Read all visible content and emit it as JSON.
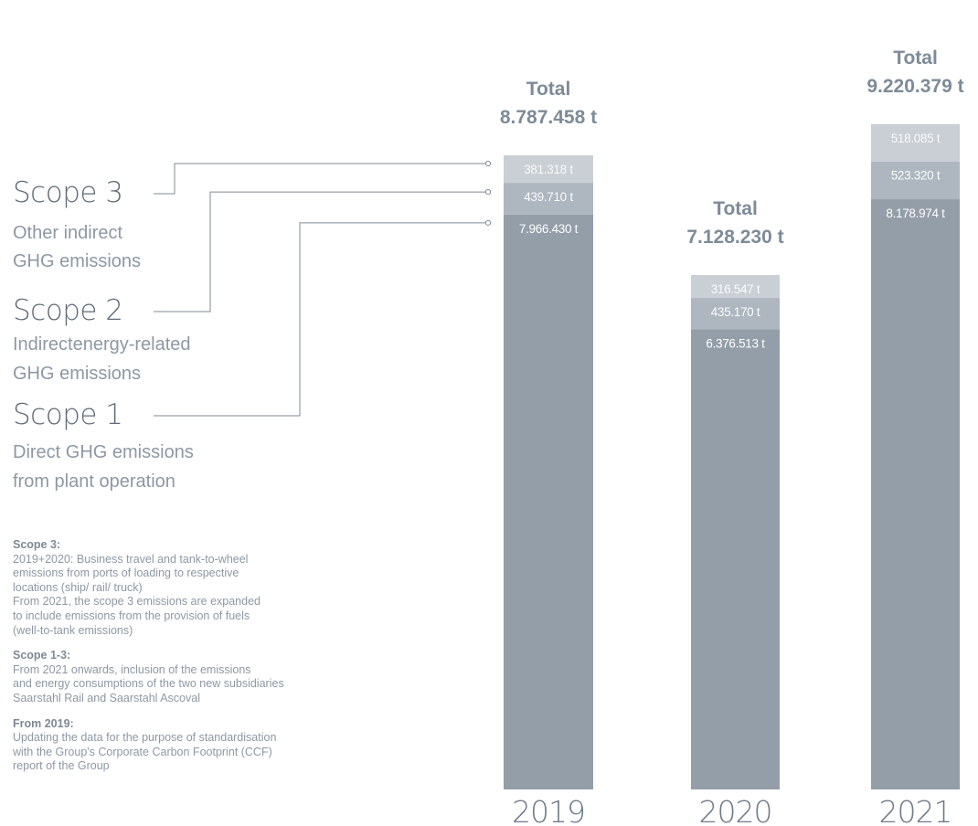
{
  "legend": {
    "scope3": {
      "title": "Scope 3",
      "desc": [
        "Other indirect",
        "GHG emissions"
      ]
    },
    "scope2": {
      "title": "Scope 2",
      "desc": [
        "Indirectenergy-related",
        "GHG emissions"
      ]
    },
    "scope1": {
      "title": "Scope 1",
      "desc": [
        "Direct GHG emissions",
        "from plant operation"
      ]
    }
  },
  "notes": [
    {
      "heading": "Scope 3:",
      "lines": [
        "2019+2020: Business travel and tank-to-wheel",
        "emissions from ports of loading to respective",
        "locations (ship/ rail/ truck)",
        "From 2021, the scope 3 emissions are expanded",
        "to include emissions from the provision of fuels",
        "(well-to-tank emissions)"
      ]
    },
    {
      "heading": "Scope 1-3:",
      "lines": [
        "From 2021 onwards, inclusion of the emissions",
        "and energy consumptions of the two new subsidiaries",
        "Saarstahl Rail and Saarstahl Ascoval"
      ]
    },
    {
      "heading": "From 2019:",
      "lines": [
        "Updating the data for the purpose of standardisation",
        "with the Group's Corporate Carbon Footprint (CCF)",
        "report of the Group"
      ]
    }
  ],
  "colors": {
    "scope1": "#939ea8",
    "scope2": "#aeb7bf",
    "scope3": "#c9cfd5",
    "total_text": "#7d8b98",
    "year_text": "#6f7b87",
    "value_text": "#ffffff",
    "leader": "#7f8b96"
  },
  "chart_data": {
    "type": "bar",
    "stacked": true,
    "categories": [
      "2019",
      "2020",
      "2021"
    ],
    "series": [
      {
        "name": "Scope 1",
        "values": [
          7966430,
          6376513,
          8178974
        ],
        "labels": [
          "7.966.430 t",
          "6.376.513 t",
          "8.178.974 t"
        ]
      },
      {
        "name": "Scope 2",
        "values": [
          439710,
          435170,
          523320
        ],
        "labels": [
          "439.710 t",
          "435.170 t",
          "523.320 t"
        ]
      },
      {
        "name": "Scope 3",
        "values": [
          381318,
          316547,
          518085
        ],
        "labels": [
          "381.318 t",
          "316.547 t",
          "518.085 t"
        ]
      }
    ],
    "totals": {
      "label": "Total",
      "values": [
        8787458,
        7128230,
        9220379
      ],
      "labels": [
        "8.787.458 t",
        "7.128.230 t",
        "9.220.379 t"
      ]
    },
    "unit": "t"
  }
}
